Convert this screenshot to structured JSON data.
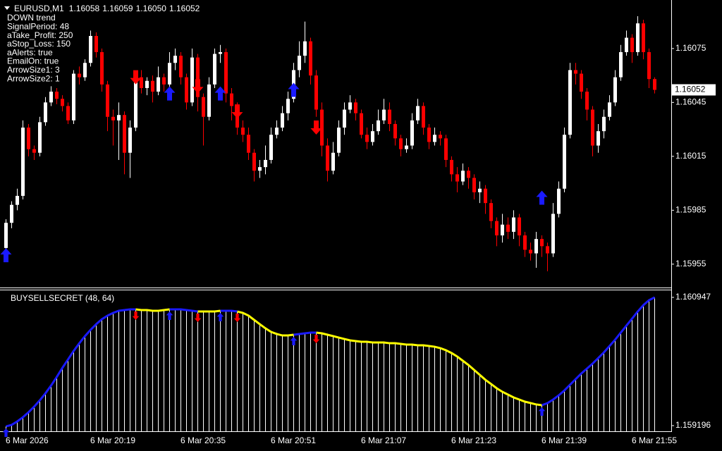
{
  "chart_data": [
    {
      "type": "candlestick",
      "symbol": "EURUSD,M1",
      "last_bar_labels": [
        "1.16058",
        "1.16059",
        "1.16050",
        "1.16052"
      ],
      "info_lines": [
        "DOWN trend",
        "SignalPeriod: 48",
        "aTake_Profit: 250",
        "aStop_Loss: 150",
        "aAlerts: true",
        "EmailOn: true",
        "ArrowSize1: 3",
        "ArrowSize2: 1"
      ],
      "categories": [
        "6 Mar 2026",
        null,
        null,
        null,
        null,
        null,
        null,
        null,
        null,
        null,
        null,
        null,
        null,
        null,
        null,
        "6 Mar 20:19",
        null,
        null,
        null,
        null,
        null,
        null,
        null,
        null,
        null,
        null,
        null,
        null,
        null,
        null,
        null,
        "6 Mar 20:35",
        null,
        null,
        null,
        null,
        null,
        null,
        null,
        null,
        null,
        null,
        null,
        null,
        null,
        null,
        null,
        "6 Mar 20:51",
        null,
        null,
        null,
        null,
        null,
        null,
        null,
        null,
        null,
        null,
        null,
        null,
        null,
        null,
        null,
        "6 Mar 21:07",
        null,
        null,
        null,
        null,
        null,
        null,
        null,
        null,
        null,
        null,
        null,
        null,
        null,
        null,
        null,
        "6 Mar 21:23",
        null,
        null,
        null,
        null,
        null,
        null,
        null,
        null,
        null,
        null,
        null,
        null,
        null,
        null,
        null,
        "6 Mar 21:39",
        null,
        null,
        null,
        null,
        null,
        null,
        null,
        null,
        null,
        null,
        null,
        null,
        null,
        null,
        null,
        "6 Mar 21:55",
        null,
        null,
        null,
        null
      ],
      "open": [
        1.15964,
        1.15978,
        1.15988,
        1.15993,
        1.16031,
        1.16019,
        1.16017,
        1.16034,
        1.16045,
        1.16051,
        1.16047,
        1.16043,
        1.16035,
        1.16061,
        1.16059,
        1.16067,
        1.16082,
        1.16073,
        1.16055,
        1.16037,
        1.16035,
        1.16038,
        1.16017,
        1.16031,
        1.16059,
        1.16053,
        1.16057,
        1.16051,
        1.16059,
        1.16055,
        1.16067,
        1.16071,
        1.16059,
        1.16045,
        1.1607,
        1.16048,
        1.16037,
        1.16055,
        1.16072,
        1.16073,
        1.1605,
        1.16043,
        1.16031,
        1.16027,
        1.16017,
        1.16007,
        1.16009,
        1.16013,
        1.16027,
        1.16031,
        1.16039,
        1.16047,
        1.16063,
        1.16071,
        1.16079,
        1.1606,
        1.16041,
        1.16021,
        1.16007,
        1.16017,
        1.16031,
        1.16041,
        1.16045,
        1.16039,
        1.16027,
        1.16023,
        1.16029,
        1.16035,
        1.16041,
        1.16033,
        1.16025,
        1.16019,
        1.16021,
        1.16035,
        1.16043,
        1.16031,
        1.16023,
        1.16027,
        1.16025,
        1.16013,
        1.16005,
        1.16001,
        1.16007,
        1.16003,
        1.15995,
        1.15997,
        1.15989,
        1.15979,
        1.15971,
        1.15977,
        1.15973,
        1.15981,
        1.15971,
        1.15963,
        1.15961,
        1.15969,
        1.15965,
        1.15961,
        1.15983,
        1.15997,
        1.16027,
        1.16063,
        1.16061,
        1.16051,
        1.16041,
        1.16021,
        1.16029,
        1.16037,
        1.16045,
        1.16059,
        1.16073,
        1.16081,
        1.16073,
        1.16089,
        1.16073,
        1.16058
      ],
      "high": [
        1.1598,
        1.1599,
        1.15997,
        1.16035,
        1.16033,
        1.16021,
        1.16037,
        1.16048,
        1.16054,
        1.16053,
        1.16049,
        1.16045,
        1.16063,
        1.16065,
        1.16069,
        1.16085,
        1.16084,
        1.16075,
        1.16057,
        1.16041,
        1.16045,
        1.1604,
        1.16035,
        1.16061,
        1.16063,
        1.16059,
        1.1606,
        1.16065,
        1.16061,
        1.16073,
        1.16075,
        1.16073,
        1.16061,
        1.16075,
        1.16072,
        1.1605,
        1.16059,
        1.16075,
        1.16077,
        1.16075,
        1.16053,
        1.16045,
        1.16035,
        1.16031,
        1.16019,
        1.16013,
        1.16021,
        1.16031,
        1.16035,
        1.16043,
        1.16051,
        1.16067,
        1.16079,
        1.1609,
        1.16081,
        1.16063,
        1.16045,
        1.16025,
        1.16023,
        1.16035,
        1.16045,
        1.16049,
        1.16047,
        1.16041,
        1.16031,
        1.16033,
        1.16041,
        1.16047,
        1.16045,
        1.16035,
        1.16027,
        1.16025,
        1.16039,
        1.16047,
        1.16045,
        1.16033,
        1.16031,
        1.16029,
        1.16027,
        1.16015,
        1.16009,
        1.16011,
        1.16009,
        1.16005,
        1.16001,
        1.15999,
        1.15991,
        1.15981,
        1.15983,
        1.15981,
        1.15985,
        1.15983,
        1.15973,
        1.15967,
        1.15973,
        1.15971,
        1.15967,
        1.15989,
        1.16001,
        1.16031,
        1.16067,
        1.16067,
        1.16063,
        1.16053,
        1.16043,
        1.16033,
        1.16041,
        1.16049,
        1.16063,
        1.16077,
        1.16085,
        1.16083,
        1.16093,
        1.16091,
        1.16075,
        1.16059
      ],
      "low": [
        1.1596,
        1.15975,
        1.15985,
        1.15991,
        1.16015,
        1.16013,
        1.16015,
        1.16032,
        1.16043,
        1.16044,
        1.1604,
        1.16033,
        1.16033,
        1.16055,
        1.16057,
        1.16065,
        1.1607,
        1.16051,
        1.16029,
        1.16021,
        1.16013,
        1.16005,
        1.16003,
        1.16029,
        1.1605,
        1.16049,
        1.16045,
        1.16049,
        1.16051,
        1.16053,
        1.16063,
        1.16055,
        1.16041,
        1.16043,
        1.1604,
        1.16021,
        1.16035,
        1.16053,
        1.16067,
        1.16045,
        1.16035,
        1.16027,
        1.16023,
        1.16013,
        1.16001,
        1.16003,
        1.16005,
        1.16011,
        1.16025,
        1.16029,
        1.16035,
        1.16045,
        1.16059,
        1.16067,
        1.16055,
        1.16037,
        1.16015,
        1.16001,
        1.16005,
        1.16015,
        1.16027,
        1.16039,
        1.16035,
        1.16025,
        1.16019,
        1.16021,
        1.16027,
        1.16033,
        1.16029,
        1.16021,
        1.16015,
        1.16017,
        1.16019,
        1.16033,
        1.16027,
        1.16019,
        1.16021,
        1.16021,
        1.16009,
        1.16001,
        1.15995,
        1.15999,
        1.15997,
        1.15991,
        1.15989,
        1.15983,
        1.15975,
        1.15965,
        1.15967,
        1.15969,
        1.15969,
        1.15965,
        1.15959,
        1.15957,
        1.15953,
        1.15959,
        1.15951,
        1.15959,
        1.15981,
        1.15995,
        1.16025,
        1.16055,
        1.16047,
        1.16035,
        1.16015,
        1.16017,
        1.16025,
        1.16035,
        1.16043,
        1.16057,
        1.16071,
        1.16067,
        1.16071,
        1.16069,
        1.16053,
        1.1605
      ],
      "close": [
        1.15978,
        1.15988,
        1.15993,
        1.16031,
        1.16019,
        1.16017,
        1.16034,
        1.16045,
        1.16051,
        1.16047,
        1.16043,
        1.16035,
        1.16061,
        1.16059,
        1.16067,
        1.16082,
        1.16073,
        1.16055,
        1.16037,
        1.16035,
        1.16038,
        1.16017,
        1.16031,
        1.16059,
        1.16053,
        1.16057,
        1.16051,
        1.16059,
        1.16055,
        1.16067,
        1.16071,
        1.16059,
        1.16045,
        1.1607,
        1.16048,
        1.16037,
        1.16055,
        1.16072,
        1.16073,
        1.1605,
        1.16043,
        1.16031,
        1.16027,
        1.16017,
        1.16007,
        1.16009,
        1.16013,
        1.16027,
        1.16031,
        1.16039,
        1.16047,
        1.16063,
        1.16071,
        1.16079,
        1.1606,
        1.16041,
        1.16021,
        1.16007,
        1.16017,
        1.16031,
        1.16041,
        1.16045,
        1.16039,
        1.16027,
        1.16023,
        1.16029,
        1.16035,
        1.16041,
        1.16033,
        1.16025,
        1.16019,
        1.16021,
        1.16035,
        1.16043,
        1.16031,
        1.16023,
        1.16027,
        1.16025,
        1.16013,
        1.16005,
        1.16001,
        1.16007,
        1.16003,
        1.15995,
        1.15997,
        1.15989,
        1.15979,
        1.15971,
        1.15977,
        1.15973,
        1.15981,
        1.15971,
        1.15963,
        1.15961,
        1.15969,
        1.15965,
        1.15961,
        1.15983,
        1.15997,
        1.16027,
        1.16063,
        1.16061,
        1.16051,
        1.16041,
        1.16021,
        1.16029,
        1.16037,
        1.16045,
        1.16059,
        1.16073,
        1.16081,
        1.16073,
        1.16089,
        1.16073,
        1.16058,
        1.16052
      ],
      "up_color": "#ffffff",
      "down_color": "#ff0000",
      "doji_color": "#00ff00",
      "up_arrows": {
        "color": "#1a1aff",
        "x": [
          0,
          29,
          38,
          51,
          95
        ],
        "values": [
          1.1596,
          1.1605,
          1.1605,
          1.16052,
          1.15992
        ]
      },
      "down_arrows": {
        "color": "#ff0000",
        "x": [
          23,
          34,
          41,
          55
        ],
        "values": [
          1.16059,
          1.16054,
          1.1604,
          1.16031
        ]
      },
      "ylim": [
        1.15942,
        1.16102
      ],
      "yticks": [
        1.16075,
        1.16045,
        1.16015,
        1.15985,
        1.15955
      ]
    },
    {
      "type": "line",
      "title": "BUYSELLSECRET (48, 64)",
      "values": [
        1.159186,
        1.159206,
        1.159254,
        1.159311,
        1.159379,
        1.159456,
        1.159542,
        1.159638,
        1.159744,
        1.15986,
        1.159985,
        1.1601,
        1.160216,
        1.160321,
        1.160418,
        1.160504,
        1.160581,
        1.160649,
        1.160697,
        1.160735,
        1.160764,
        1.160774,
        1.160783,
        1.160783,
        1.160774,
        1.160774,
        1.160764,
        1.160764,
        1.160774,
        1.160783,
        1.160783,
        1.160783,
        1.160774,
        1.160764,
        1.160754,
        1.160754,
        1.160754,
        1.160754,
        1.160764,
        1.160764,
        1.160764,
        1.160754,
        1.160735,
        1.160697,
        1.160639,
        1.160581,
        1.160524,
        1.160475,
        1.160447,
        1.160427,
        1.160427,
        1.160437,
        1.160447,
        1.160456,
        1.160466,
        1.160466,
        1.160456,
        1.160437,
        1.160418,
        1.160398,
        1.160379,
        1.16036,
        1.16035,
        1.160341,
        1.160341,
        1.160331,
        1.160331,
        1.160331,
        1.160321,
        1.160321,
        1.160312,
        1.160302,
        1.160302,
        1.160293,
        1.160293,
        1.160283,
        1.160273,
        1.160254,
        1.160225,
        1.160187,
        1.160139,
        1.160081,
        1.160023,
        1.159956,
        1.159889,
        1.159821,
        1.159764,
        1.159706,
        1.159658,
        1.159619,
        1.159581,
        1.159552,
        1.159523,
        1.159504,
        1.159485,
        1.159475,
        1.159504,
        1.159552,
        1.15961,
        1.159677,
        1.159754,
        1.159831,
        1.159908,
        1.159975,
        1.160043,
        1.160119,
        1.160196,
        1.160283,
        1.16037,
        1.160466,
        1.160562,
        1.160658,
        1.160754,
        1.160841,
        1.160908,
        1.160947
      ],
      "segments": [
        {
          "start": 0,
          "end": 23,
          "color": "#1a1aff"
        },
        {
          "start": 23,
          "end": 29,
          "color": "#ffff00"
        },
        {
          "start": 29,
          "end": 34,
          "color": "#1a1aff"
        },
        {
          "start": 34,
          "end": 38,
          "color": "#ffff00"
        },
        {
          "start": 38,
          "end": 41,
          "color": "#1a1aff"
        },
        {
          "start": 41,
          "end": 51,
          "color": "#ffff00"
        },
        {
          "start": 51,
          "end": 55,
          "color": "#1a1aff"
        },
        {
          "start": 55,
          "end": 95,
          "color": "#ffff00"
        },
        {
          "start": 95,
          "end": 115,
          "color": "#1a1aff"
        }
      ],
      "histogram_color": "#ffffff",
      "ylim": [
        1.159119,
        1.161043
      ],
      "yticks": [
        1.160947,
        1.159196
      ]
    }
  ]
}
